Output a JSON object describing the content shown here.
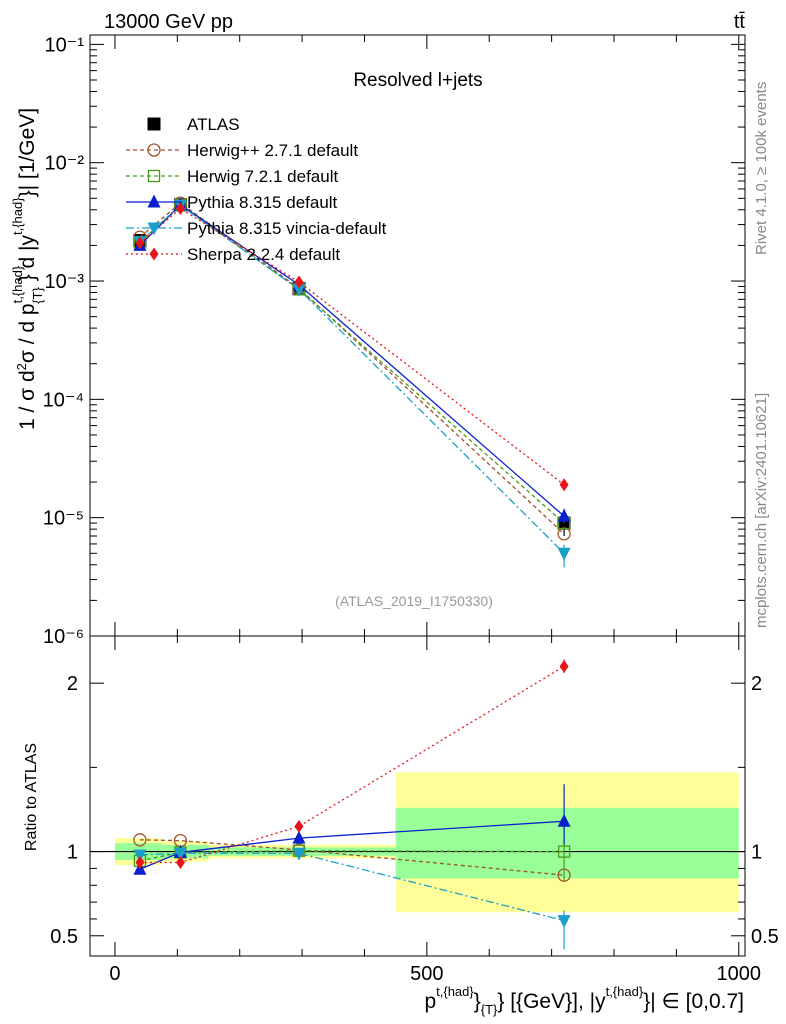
{
  "header": {
    "left": "13000 GeV pp",
    "right": "tt̄"
  },
  "side_labels": {
    "rivet": "Rivet 4.1.0, ≥ 100k events",
    "mcplots": "mcplots.cern.ch [arXiv:2401.10621]"
  },
  "chart_data": [
    {
      "type": "line",
      "panel": "main",
      "title": "Resolved l+jets",
      "analysis": "(ATLAS_2019_I1750330)",
      "ylabel": "1 / σ d²σ / d p_T^{t,{had}} d |y^{t,{had}}| [1/GeV]",
      "yscale": "log",
      "ylim": [
        1e-06,
        0.12
      ],
      "xlim": [
        -40,
        1010
      ],
      "x_bins": [
        [
          0,
          75
        ],
        [
          75,
          150
        ],
        [
          150,
          450
        ],
        [
          450,
          1000
        ]
      ],
      "x": [
        40,
        105,
        295,
        720
      ],
      "y_tick_labels": [
        "10⁻⁶",
        "10⁻⁵",
        "10⁻⁴",
        "10⁻³",
        "10⁻²",
        "10⁻¹"
      ],
      "series": [
        {
          "name": "ATLAS",
          "color": "#000000",
          "marker": "square-filled",
          "values": [
            0.0022,
            0.0044,
            0.00086,
            9e-06
          ],
          "err_hi": [
            0.00015,
            0.0002,
            5e-05,
            2e-06
          ],
          "err_lo": [
            0.00015,
            0.0002,
            5e-05,
            2e-06
          ]
        },
        {
          "name": "Herwig++ 2.7.1 default",
          "color": "#a0522d",
          "marker": "circle-open",
          "dash": "4,3",
          "values": [
            0.00235,
            0.00455,
            0.00087,
            7.3e-06
          ]
        },
        {
          "name": "Herwig 7.2.1 default",
          "color": "#4a9a18",
          "marker": "square-open",
          "dash": "4,3",
          "values": [
            0.00212,
            0.00438,
            0.00085,
            9e-06
          ]
        },
        {
          "name": "Pythia 8.315 default",
          "color": "#0a1fcf",
          "marker": "triangle-up",
          "dash": "",
          "values": [
            0.002,
            0.0044,
            0.00093,
            1.03e-05
          ],
          "err_hi": [
            0,
            0,
            0,
            1.6e-06
          ],
          "err_lo": [
            0,
            0,
            0,
            1.2e-06
          ]
        },
        {
          "name": "Pythia 8.315 vincia-default",
          "color": "#1aa0c8",
          "marker": "triangle-down",
          "dash": "8,3,2,3",
          "values": [
            0.00215,
            0.00435,
            0.00085,
            5e-06
          ],
          "err_hi": [
            0,
            0,
            0,
            9e-07
          ],
          "err_lo": [
            0,
            0,
            0,
            1.2e-06
          ]
        },
        {
          "name": "Sherpa 2.2.4 default",
          "color": "#e8141b",
          "marker": "diamond",
          "dash": "2,3",
          "values": [
            0.0021,
            0.0041,
            0.00098,
            1.9e-05
          ]
        }
      ]
    },
    {
      "type": "line",
      "panel": "ratio",
      "ylabel": "Ratio to ATLAS",
      "xlabel": "p_T^{t,{had}} [{GeV}], |y^{t,{had}}| ∈ [0,0.7]",
      "ylim": [
        0.38,
        2.28
      ],
      "xlim": [
        -40,
        1010
      ],
      "x_ticks": [
        0,
        500,
        1000
      ],
      "y_ticks": [
        0.5,
        1,
        2
      ],
      "bands": {
        "bins": [
          [
            0,
            75
          ],
          [
            75,
            150
          ],
          [
            150,
            450
          ],
          [
            450,
            1000
          ]
        ],
        "green": [
          [
            0.95,
            1.05
          ],
          [
            0.96,
            1.04
          ],
          [
            0.975,
            1.025
          ],
          [
            0.84,
            1.26
          ]
        ],
        "yellow": [
          [
            0.92,
            1.08
          ],
          [
            0.94,
            1.06
          ],
          [
            0.96,
            1.04
          ],
          [
            0.64,
            1.47
          ]
        ]
      },
      "x": [
        40,
        105,
        295,
        720
      ],
      "series": [
        {
          "name": "Herwig++ 2.7.1 default",
          "values": [
            1.07,
            1.065,
            1.01,
            0.86
          ]
        },
        {
          "name": "Herwig 7.2.1 default",
          "values": [
            0.945,
            0.995,
            1.005,
            1.0
          ],
          "err_hi": [
            0,
            0,
            0,
            0.22
          ],
          "err_lo": [
            0,
            0,
            0,
            0.18
          ]
        },
        {
          "name": "Pythia 8.315 default",
          "values": [
            0.895,
            0.995,
            1.08,
            1.18
          ],
          "err_hi": [
            0,
            0,
            0,
            0.22
          ],
          "err_lo": [
            0,
            0,
            0,
            0.14
          ]
        },
        {
          "name": "Pythia 8.315 vincia-default",
          "values": [
            0.98,
            0.99,
            0.99,
            0.59
          ],
          "err_hi": [
            0,
            0,
            0,
            0.06
          ],
          "err_lo": [
            0,
            0,
            0,
            0.17
          ]
        },
        {
          "name": "Sherpa 2.2.4 default",
          "values": [
            0.935,
            0.935,
            1.15,
            2.1
          ],
          "err_hi": [
            0,
            0,
            0,
            0.04
          ],
          "err_lo": [
            0,
            0,
            0,
            0.04
          ]
        }
      ]
    }
  ]
}
